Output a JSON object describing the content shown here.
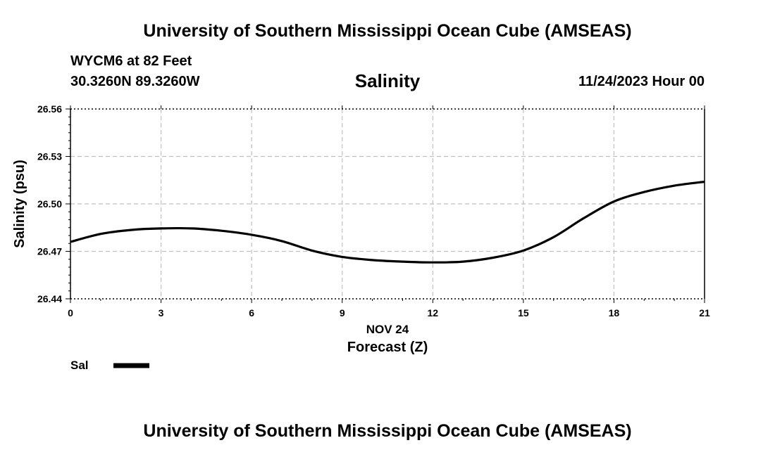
{
  "header": {
    "title": "University of Southern Mississippi Ocean Cube (AMSEAS)",
    "station": "WYCM6 at 82 Feet",
    "coords": "30.3260N  89.3260W",
    "datetime": "11/24/2023 Hour 00"
  },
  "footer": {
    "title": "University of Southern Mississippi Ocean Cube (AMSEAS)"
  },
  "chart_data": {
    "type": "line",
    "title": "Salinity",
    "xlabel": "Forecast (Z)",
    "xlabel_date": "NOV 24",
    "ylabel": "Salinity (psu)",
    "xlim": [
      0,
      21
    ],
    "ylim": [
      26.44,
      26.56
    ],
    "xticks": [
      "0",
      "3",
      "6",
      "9",
      "12",
      "15",
      "18",
      "21"
    ],
    "yticks": [
      "26.44",
      "26.47",
      "26.50",
      "26.53",
      "26.56"
    ],
    "grid": true,
    "legend": {
      "label": "Sal",
      "placement": "bottom-left"
    },
    "line_color": "#000000",
    "grid_color": "#c0c0c0",
    "series": [
      {
        "name": "Sal",
        "x": [
          0,
          1,
          2,
          3,
          4,
          5,
          6,
          7,
          8,
          9,
          10,
          11,
          12,
          13,
          14,
          15,
          16,
          17,
          18,
          19,
          20,
          21
        ],
        "values": [
          26.476,
          26.481,
          26.4835,
          26.4845,
          26.4845,
          26.483,
          26.4805,
          26.4765,
          26.4705,
          26.4665,
          26.4645,
          26.4635,
          26.463,
          26.4635,
          26.466,
          26.4705,
          26.479,
          26.491,
          26.5015,
          26.5075,
          26.5115,
          26.514
        ]
      }
    ]
  }
}
